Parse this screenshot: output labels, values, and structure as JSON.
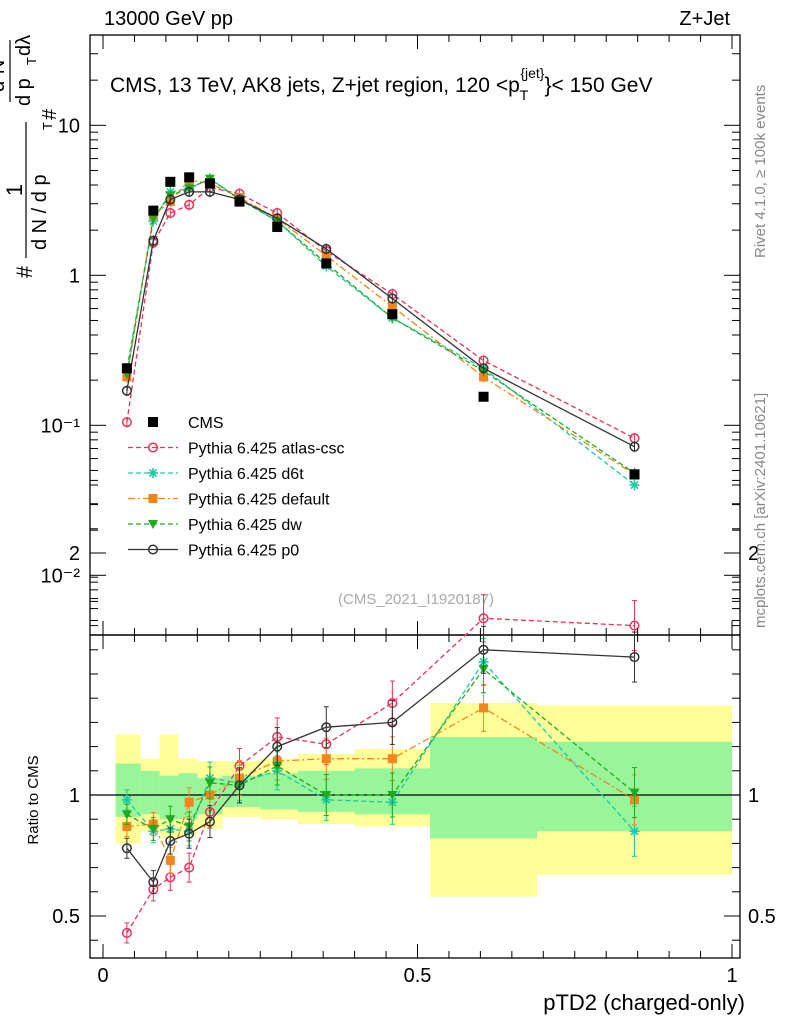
{
  "header": {
    "left": "13000 GeV pp",
    "right": "Z+Jet"
  },
  "side": {
    "rivet": "Rivet 4.1.0, ≥ 100k events",
    "mcplots": "mcplots.cern.ch [arXiv:2401.10621]"
  },
  "chart_data": {
    "type": "scatter",
    "title": "CMS, 13 TeV, AK8 jets, Z+jet region, 120 <p_T^{jet}< 150 GeV",
    "title_parts": {
      "prefix": "CMS, 13 TeV, AK8 jets, Z+jet region, 120 <p",
      "sub": "T",
      "sup": "{jet}",
      "suffix": "}< 150 GeV"
    },
    "watermark": "(CMS_2021_I1920187)",
    "xlabel": "pTD2 (charged-only)",
    "ylabel_parts": {
      "hash": "#",
      "one": "1",
      "dN": "d N / d p",
      "T": "T",
      "hash2": "#",
      "d2N": "d²N",
      "dp": "d p",
      "T2": "T",
      "dl": "dλ"
    },
    "ratio_ylabel": "Ratio to CMS",
    "xlim": [
      0,
      1
    ],
    "ylim": [
      0.004,
      40
    ],
    "yscale": "log",
    "ratio_ylim": [
      0.4,
      2.3
    ],
    "x_ticks": [
      "0",
      "0.5",
      "1"
    ],
    "y_ticks": [
      "10⁻²",
      "10⁻¹",
      "1",
      "10"
    ],
    "ratio_ticks": [
      "0.5",
      "1",
      "2"
    ],
    "bin_edges": [
      0.02,
      0.06,
      0.09,
      0.12,
      0.15,
      0.19,
      0.25,
      0.31,
      0.4,
      0.52,
      0.69,
      1.0
    ],
    "x": [
      0.038,
      0.08,
      0.107,
      0.137,
      0.17,
      0.217,
      0.277,
      0.355,
      0.46,
      0.605,
      0.845
    ],
    "data": {
      "name": "CMS",
      "values": [
        0.24,
        2.7,
        4.2,
        4.5,
        4.1,
        3.1,
        2.1,
        1.2,
        0.55,
        0.155,
        0.047
      ]
    },
    "band": {
      "inner": [
        [
          0.91,
          1.13
        ],
        [
          0.92,
          1.1
        ],
        [
          0.9,
          1.08
        ],
        [
          0.9,
          1.09
        ],
        [
          0.92,
          1.07
        ],
        [
          0.95,
          1.08
        ],
        [
          0.94,
          1.09
        ],
        [
          0.93,
          1.1
        ],
        [
          0.92,
          1.11
        ],
        [
          0.82,
          1.24
        ],
        [
          0.85,
          1.22
        ]
      ],
      "outer": [
        [
          0.8,
          1.25
        ],
        [
          0.85,
          1.15
        ],
        [
          0.82,
          1.25
        ],
        [
          0.83,
          1.15
        ],
        [
          0.86,
          1.14
        ],
        [
          0.91,
          1.14
        ],
        [
          0.9,
          1.15
        ],
        [
          0.88,
          1.17
        ],
        [
          0.87,
          1.19
        ],
        [
          0.58,
          1.38
        ],
        [
          0.67,
          1.37
        ]
      ]
    },
    "series": [
      {
        "name": "Pythia 6.425 atlas-csc",
        "color": "#e8335a",
        "marker": "circle-open",
        "dash": "5,3",
        "values": [
          0.105,
          1.65,
          2.6,
          2.95,
          3.85,
          3.5,
          2.6,
          1.45,
          0.75,
          0.27,
          0.082
        ],
        "ratio": [
          0.43,
          0.61,
          0.66,
          0.7,
          0.93,
          1.12,
          1.24,
          1.21,
          1.38,
          1.73,
          1.7
        ]
      },
      {
        "name": "Pythia 6.425 d6t",
        "color": "#1cc9a5",
        "marker": "star",
        "dash": "5,3",
        "values": [
          0.24,
          2.3,
          3.6,
          3.8,
          4.4,
          3.25,
          2.3,
          1.15,
          0.52,
          0.24,
          0.04
        ],
        "ratio": [
          0.98,
          0.85,
          0.86,
          0.85,
          1.07,
          1.05,
          1.1,
          0.98,
          0.97,
          1.55,
          0.85
        ]
      },
      {
        "name": "Pythia 6.425 default",
        "color": "#f28520",
        "marker": "square",
        "dash": "7,3,2,3",
        "values": [
          0.21,
          2.5,
          3.1,
          4.3,
          4.1,
          3.3,
          2.4,
          1.35,
          0.62,
          0.21,
          0.047
        ],
        "ratio": [
          0.87,
          0.88,
          0.73,
          0.97,
          1.0,
          1.07,
          1.14,
          1.15,
          1.15,
          1.36,
          0.98
        ]
      },
      {
        "name": "Pythia 6.425 dw",
        "color": "#1faa1f",
        "marker": "triangle-down",
        "dash": "5,3",
        "values": [
          0.22,
          2.4,
          3.4,
          3.8,
          4.4,
          3.2,
          2.3,
          1.2,
          0.52,
          0.23,
          0.048
        ],
        "ratio": [
          0.92,
          0.86,
          0.9,
          0.87,
          1.05,
          1.04,
          1.12,
          1.0,
          1.0,
          1.52,
          1.01
        ]
      },
      {
        "name": "Pythia 6.425 p0",
        "color": "#333333",
        "marker": "circle-open",
        "dash": "",
        "values": [
          0.17,
          1.7,
          3.2,
          3.6,
          3.6,
          3.2,
          2.4,
          1.5,
          0.7,
          0.24,
          0.072
        ],
        "ratio": [
          0.78,
          0.64,
          0.81,
          0.84,
          0.89,
          1.04,
          1.2,
          1.28,
          1.3,
          1.6,
          1.57
        ]
      }
    ]
  }
}
